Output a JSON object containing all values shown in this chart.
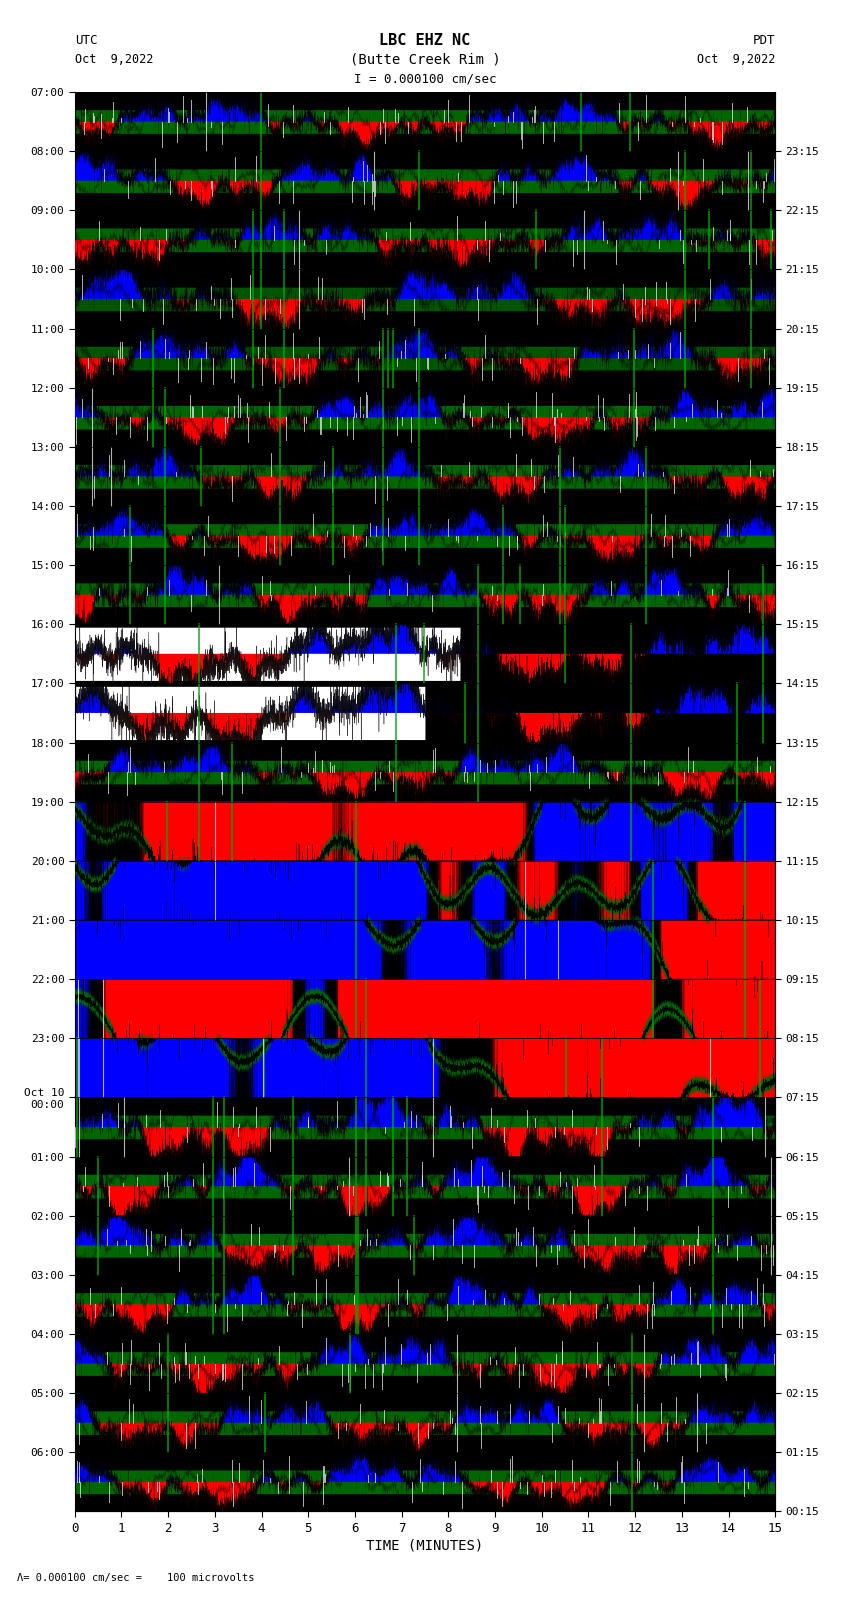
{
  "title_line1": "LBC EHZ NC",
  "title_line2": "(Butte Creek Rim )",
  "scale_label": "I = 0.000100 cm/sec",
  "bottom_label": "= 0.000100 cm/sec =    100 microvolts",
  "xlabel": "TIME (MINUTES)",
  "left_label": "UTC",
  "left_date": "Oct  9,2022",
  "right_label": "PDT",
  "right_date": "Oct  9,2022",
  "left_times": [
    "07:00",
    "08:00",
    "09:00",
    "10:00",
    "11:00",
    "12:00",
    "13:00",
    "14:00",
    "15:00",
    "16:00",
    "17:00",
    "18:00",
    "19:00",
    "20:00",
    "21:00",
    "22:00",
    "23:00",
    "Oct 10\n00:00",
    "01:00",
    "02:00",
    "03:00",
    "04:00",
    "05:00",
    "06:00"
  ],
  "right_times": [
    "00:15",
    "01:15",
    "02:15",
    "03:15",
    "04:15",
    "05:15",
    "06:15",
    "07:15",
    "08:15",
    "09:15",
    "10:15",
    "11:15",
    "12:15",
    "13:15",
    "14:15",
    "15:15",
    "16:15",
    "17:15",
    "18:15",
    "19:15",
    "20:15",
    "21:15",
    "22:15",
    "23:15"
  ],
  "n_rows": 24,
  "x_min": 0,
  "x_max": 15,
  "seed": 42
}
